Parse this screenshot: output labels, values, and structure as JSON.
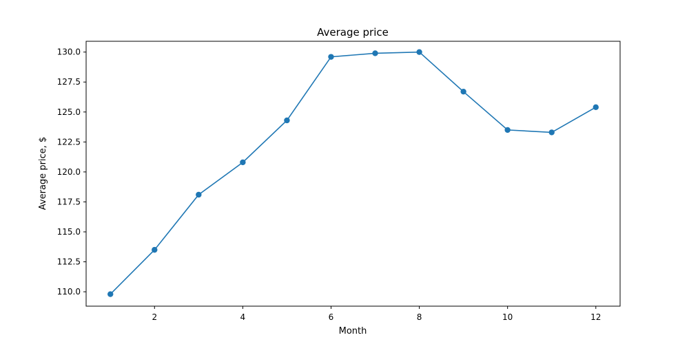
{
  "chart_data": {
    "type": "line",
    "title": "Average price",
    "xlabel": "Month",
    "ylabel": "Average price, $",
    "xlim": [
      0.45,
      12.55
    ],
    "ylim": [
      108.8,
      130.9
    ],
    "xticks": [
      "2",
      "4",
      "6",
      "8",
      "10",
      "12"
    ],
    "yticks": [
      "110.0",
      "112.5",
      "115.0",
      "117.5",
      "120.0",
      "122.5",
      "125.0",
      "127.5",
      "130.0"
    ],
    "grid": false,
    "series": [
      {
        "color": "#1f77b4",
        "marker": "circle",
        "x": [
          1,
          2,
          3,
          4,
          5,
          6,
          7,
          8,
          9,
          10,
          11,
          12
        ],
        "y": [
          109.8,
          113.5,
          118.1,
          120.8,
          124.3,
          129.6,
          129.9,
          130.0,
          126.7,
          123.5,
          123.3,
          125.4
        ]
      }
    ]
  }
}
